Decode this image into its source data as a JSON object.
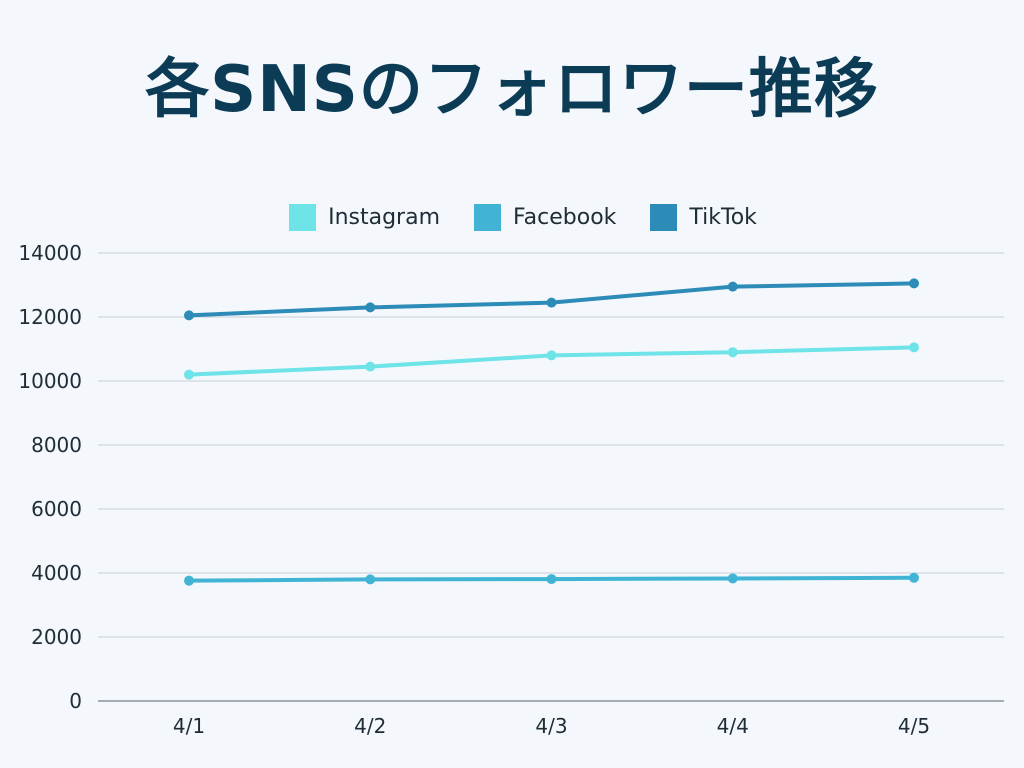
{
  "title": "各SNSのフォロワー推移",
  "chart_data": {
    "type": "line",
    "title": "各SNSのフォロワー推移",
    "xlabel": "",
    "ylabel": "",
    "categories": [
      "4/1",
      "4/2",
      "4/3",
      "4/4",
      "4/5"
    ],
    "ylim": [
      0,
      14000
    ],
    "yticks": [
      0,
      2000,
      4000,
      6000,
      8000,
      10000,
      12000,
      14000
    ],
    "grid": true,
    "legend_position": "top-center",
    "series": [
      {
        "name": "Instagram",
        "color": "#6ee3e8",
        "values": [
          10200,
          10450,
          10800,
          10900,
          11050
        ]
      },
      {
        "name": "Facebook",
        "color": "#41b4d6",
        "values": [
          3760,
          3800,
          3810,
          3830,
          3850
        ]
      },
      {
        "name": "TikTok",
        "color": "#2d8bb8",
        "values": [
          12050,
          12300,
          12450,
          12950,
          13050
        ]
      }
    ]
  }
}
